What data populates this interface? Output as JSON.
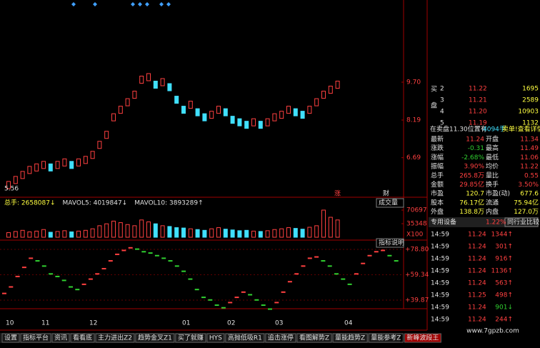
{
  "indicator_bar": [
    "总手: 2658087↓",
    "MAVOL5: 4019847↓",
    "MAVOL10: 3893289↑"
  ],
  "price_chart": {
    "closes": [
      5.6,
      5.8,
      6.0,
      6.2,
      6.3,
      6.4,
      6.3,
      6.4,
      6.5,
      6.4,
      6.5,
      6.6,
      6.8,
      7.2,
      7.6,
      8.3,
      8.6,
      8.9,
      9.2,
      9.8,
      9.9,
      9.6,
      9.7,
      9.5,
      9.0,
      8.6,
      8.8,
      8.5,
      8.3,
      8.4,
      8.6,
      8.5,
      8.2,
      8.1,
      8.0,
      8.1,
      8.0,
      8.1,
      8.3,
      8.4,
      8.6,
      8.5,
      8.4,
      8.6,
      8.9,
      9.2,
      9.4,
      9.6
    ],
    "yticks": [
      {
        "value": 9.7,
        "label": "9.70"
      },
      8.19,
      6.69
    ],
    "low_label": "5.56",
    "markers": [
      "涨",
      "财"
    ]
  },
  "volume_chart": {
    "values": [
      12000,
      15000,
      18000,
      14000,
      16000,
      20000,
      13000,
      15000,
      17000,
      14000,
      16000,
      18000,
      22000,
      30000,
      35000,
      42000,
      38000,
      33000,
      30000,
      45000,
      40000,
      35000,
      30000,
      28000,
      25000,
      24000,
      22000,
      20000,
      18000,
      22000,
      25000,
      21000,
      19000,
      17000,
      18000,
      16000,
      15000,
      17000,
      20000,
      22000,
      25000,
      23000,
      21000,
      26000,
      30000,
      70697,
      52000,
      45000
    ],
    "yticks": [
      70697,
      35348
    ],
    "unit": "X100",
    "selector": "成交量",
    "help": "指标说明"
  },
  "oscillator": {
    "values": [
      45,
      50,
      58,
      65,
      72,
      70,
      66,
      60,
      58,
      55,
      50,
      48,
      52,
      56,
      60,
      64,
      70,
      75,
      78,
      80,
      79,
      77,
      76,
      74,
      72,
      70,
      66,
      62,
      56,
      48,
      42,
      40,
      36,
      34,
      38,
      42,
      46,
      44,
      40,
      36,
      33,
      38,
      46,
      54,
      60,
      66,
      72,
      73,
      70,
      66,
      60,
      56,
      52,
      60,
      68,
      74,
      77,
      78,
      74,
      70
    ],
    "yticks": [
      {
        "value": 78.8,
        "label": "+78.80"
      },
      {
        "value": 59.34,
        "label": "+59.34"
      },
      {
        "value": 39.87,
        "label": "+39.87"
      }
    ]
  },
  "x_labels": [
    "10",
    "11",
    "12",
    "01",
    "02",
    "03",
    "04"
  ],
  "order_book": {
    "side_labels": [
      "买",
      "盘"
    ],
    "rows": [
      [
        "2",
        "11.22",
        "1695"
      ],
      [
        "3",
        "11.21",
        "2589"
      ],
      [
        "4",
        "11.20",
        "10903"
      ],
      [
        "5",
        "11.19",
        "1132"
      ]
    ]
  },
  "notice": [
    "在卖盘11.30位置有",
    "4094手",
    "卖单!查看详情"
  ],
  "stats": [
    [
      "最新",
      "11.24",
      "开盘",
      "11.34"
    ],
    [
      "涨跌",
      "-0.31",
      "最高",
      "11.49"
    ],
    [
      "涨幅",
      "-2.68%",
      "最低",
      "11.06"
    ],
    [
      "振幅",
      "3.90%",
      "均价",
      "11.22"
    ],
    [
      "总手",
      "265.8万",
      "量比",
      "0.55"
    ],
    [
      "金额",
      "29.85亿",
      "换手",
      "3.50%"
    ],
    [
      "市盈",
      "120.7",
      "市盈(动)",
      "677.6"
    ],
    [
      "股本",
      "76.17亿",
      "流通",
      "75.94亿"
    ],
    [
      "外盘",
      "138.8万",
      "内盘",
      "127.0万"
    ]
  ],
  "industry": {
    "name": "专用设备",
    "change": "1.22%",
    "button": "同行业比较"
  },
  "trades": [
    [
      "14:59",
      "11.24",
      "1344↑"
    ],
    [
      "14:59",
      "11.24",
      "301↑"
    ],
    [
      "14:59",
      "11.24",
      "916↑"
    ],
    [
      "14:59",
      "11.24",
      "1136↑"
    ],
    [
      "14:59",
      "11.24",
      "563↑"
    ],
    [
      "14:59",
      "11.25",
      "498↑"
    ],
    [
      "14:59",
      "11.24",
      "901↓"
    ],
    [
      "14:59",
      "11.24",
      "244↑"
    ]
  ],
  "tabs": [
    "设置",
    "指标平台",
    "资讯",
    "看看底",
    "主力进出Z2",
    "趋势金叉Z1",
    "买了就赚",
    "HYS",
    "高抛低吸R1",
    "追击涨停",
    "看图解势Z",
    "量能趋势Z",
    "量能参考Z",
    "新峰波段王"
  ],
  "watermark": "www.7gpzb.com"
}
